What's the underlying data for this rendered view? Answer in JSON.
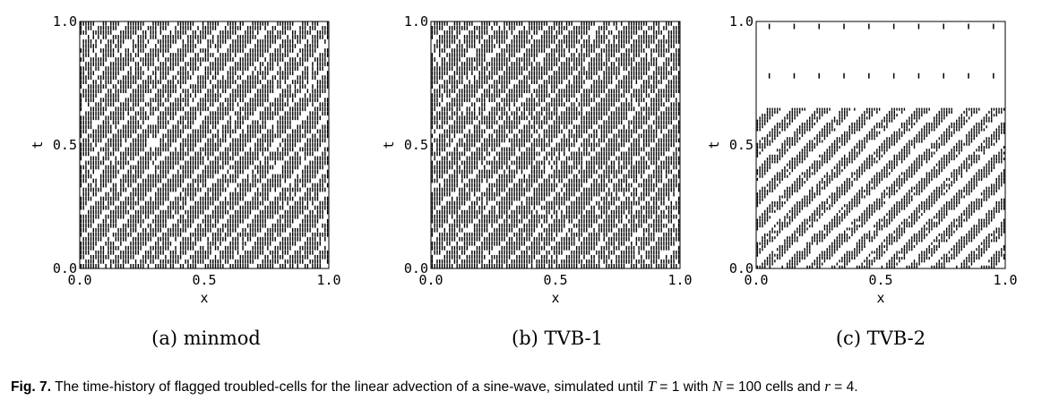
{
  "chart_data": [
    {
      "type": "scatter",
      "subcaption": "(a) minmod",
      "xlabel": "x",
      "ylabel": "t",
      "xlim": [
        0.0,
        1.0
      ],
      "ylim": [
        0.0,
        1.0
      ],
      "xticks": [
        "0.0",
        "0.5",
        "1.0"
      ],
      "yticks": [
        "0.0",
        "0.5",
        "1.0"
      ],
      "grid": false,
      "marker_color": "#000000",
      "cells": 100,
      "flagged_pattern": "diagonal bands",
      "flag_density": 0.78,
      "flag_end_time": 1.0
    },
    {
      "type": "scatter",
      "subcaption": "(b) TVB-1",
      "xlabel": "x",
      "ylabel": "t",
      "xlim": [
        0.0,
        1.0
      ],
      "ylim": [
        0.0,
        1.0
      ],
      "xticks": [
        "0.0",
        "0.5",
        "1.0"
      ],
      "yticks": [
        "0.0",
        "0.5",
        "1.0"
      ],
      "grid": false,
      "marker_color": "#000000",
      "cells": 100,
      "flagged_pattern": "diagonal bands",
      "flag_density": 0.82,
      "flag_end_time": 1.0
    },
    {
      "type": "scatter",
      "subcaption": "(c) TVB-2",
      "xlabel": "x",
      "ylabel": "t",
      "xlim": [
        0.0,
        1.0
      ],
      "ylim": [
        0.0,
        1.0
      ],
      "xticks": [
        "0.0",
        "0.5",
        "1.0"
      ],
      "yticks": [
        "0.0",
        "0.5",
        "1.0"
      ],
      "grid": false,
      "marker_color": "#000000",
      "cells": 100,
      "flagged_pattern": "diagonal bands, sparse",
      "flag_density": 0.55,
      "flag_end_time": 0.65,
      "isolated_flag_times": [
        0.78,
        0.98
      ],
      "isolated_flag_x": [
        0.05,
        0.15,
        0.25,
        0.35,
        0.45,
        0.55,
        0.65,
        0.75,
        0.85,
        0.95
      ]
    }
  ],
  "caption": {
    "label": "Fig. 7.",
    "part1": "The time-history of flagged troubled-cells for the linear advection of a sine-wave, simulated until",
    "var_T": "T",
    "eq_T": "= 1 with",
    "var_N": "N",
    "eq_N": "= 100 cells and",
    "var_r": "r",
    "eq_r": "= 4."
  }
}
